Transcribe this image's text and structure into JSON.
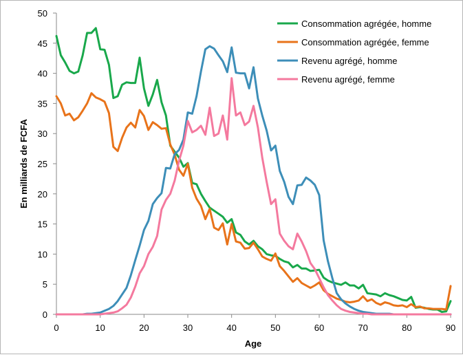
{
  "chart_data": {
    "type": "line",
    "title": "",
    "xlabel": "Age",
    "ylabel": "En milliards de FCFA",
    "xlim": [
      0,
      90
    ],
    "ylim": [
      0,
      50
    ],
    "xticks": [
      0,
      10,
      20,
      30,
      40,
      50,
      60,
      70,
      80,
      90
    ],
    "yticks": [
      0,
      5,
      10,
      15,
      20,
      25,
      30,
      35,
      40,
      45,
      50
    ],
    "grid": false,
    "legend_position": "top-right",
    "x": [
      0,
      1,
      2,
      3,
      4,
      5,
      6,
      7,
      8,
      9,
      10,
      11,
      12,
      13,
      14,
      15,
      16,
      17,
      18,
      19,
      20,
      21,
      22,
      23,
      24,
      25,
      26,
      27,
      28,
      29,
      30,
      31,
      32,
      33,
      34,
      35,
      36,
      37,
      38,
      39,
      40,
      41,
      42,
      43,
      44,
      45,
      46,
      47,
      48,
      49,
      50,
      51,
      52,
      53,
      54,
      55,
      56,
      57,
      58,
      59,
      60,
      61,
      62,
      63,
      64,
      65,
      66,
      67,
      68,
      69,
      70,
      71,
      72,
      73,
      74,
      75,
      76,
      77,
      78,
      79,
      80,
      81,
      82,
      83,
      84,
      85,
      86,
      87,
      88,
      89,
      90
    ],
    "series": [
      {
        "name": "Consommation agrégée, homme",
        "color": "#19a84b",
        "values": [
          46.2,
          43,
          41.8,
          40.4,
          40,
          40.3,
          43,
          46.7,
          46.7,
          47.5,
          44,
          43.9,
          41.4,
          35.9,
          36.2,
          38.1,
          38.5,
          38.4,
          38.4,
          42.6,
          37.5,
          34.6,
          36.5,
          38.9,
          35.2,
          33,
          28,
          27,
          26,
          24.5,
          25.1,
          21.8,
          21.6,
          20,
          18.8,
          17.7,
          17.2,
          16.7,
          16.2,
          15.2,
          15.8,
          13.6,
          13.2,
          12.1,
          11.6,
          12.2,
          11.3,
          10.8,
          10,
          9.8,
          9.7,
          9.2,
          8.8,
          8.6,
          7.8,
          8.2,
          7.6,
          7.6,
          7.2,
          7.3,
          7.4,
          6.1,
          5.6,
          5.3,
          5.1,
          4.9,
          5.3,
          4.8,
          4.8,
          4.3,
          4.9,
          3.5,
          3.4,
          3.3,
          3,
          3.5,
          3.2,
          3,
          2.7,
          2.4,
          2.3,
          2.9,
          1.1,
          1.2,
          1.1,
          0.9,
          0.8,
          0.8,
          0.4,
          0.5,
          2.2
        ]
      },
      {
        "name": "Consommation agrégée, femme",
        "color": "#e8731a",
        "values": [
          36.2,
          35,
          33,
          33.3,
          32.2,
          32.7,
          33.8,
          35,
          36.7,
          36,
          35.7,
          35.3,
          33.4,
          27.8,
          27.1,
          29.3,
          31,
          31.8,
          31,
          33.9,
          32.9,
          30.6,
          31.9,
          31.4,
          30.8,
          30.9,
          28.2,
          26.5,
          24,
          23,
          25,
          21,
          19.2,
          18,
          15.8,
          17.5,
          14.4,
          14,
          15.1,
          11.6,
          15,
          12.1,
          11.9,
          10.9,
          11,
          11.9,
          10.8,
          9.6,
          9.2,
          8.9,
          10.1,
          8,
          7.2,
          6.3,
          5.4,
          6,
          5.2,
          4.8,
          4.4,
          4.8,
          5.3,
          4,
          3.4,
          3,
          2.6,
          2.4,
          2.1,
          2,
          2.1,
          2.3,
          3,
          2.2,
          2.5,
          1.9,
          1.6,
          2,
          1.8,
          1.5,
          1.4,
          1.5,
          1.2,
          1.7,
          1.2,
          1.3,
          1,
          1,
          0.9,
          0.9,
          0.9,
          0.8,
          4.7
        ]
      },
      {
        "name": "Revenu agrégé, homme",
        "color": "#3d8eb8",
        "values": [
          0,
          0,
          0,
          0,
          0,
          0,
          0,
          0.1,
          0.1,
          0.2,
          0.3,
          0.6,
          0.9,
          1.4,
          2.2,
          3.3,
          4.4,
          6.5,
          9,
          11.4,
          14,
          15.5,
          18.3,
          19.3,
          20.1,
          24.3,
          24.2,
          26.6,
          27.3,
          29,
          33.5,
          33.3,
          36.2,
          40.3,
          44,
          44.5,
          44.1,
          43,
          42,
          40.2,
          44.3,
          40.1,
          40,
          40,
          37.5,
          41,
          35.8,
          33,
          30.5,
          27.2,
          28,
          23.8,
          22,
          19.5,
          18.3,
          21.4,
          21.5,
          22.7,
          22.2,
          21.5,
          19.8,
          12.3,
          8.8,
          6,
          3.5,
          2.5,
          1.8,
          1.3,
          0.9,
          0.6,
          0.4,
          0.3,
          0.2,
          0.1,
          0.1,
          0.1,
          0.1,
          0,
          0,
          0,
          0,
          0,
          0,
          0,
          0,
          0,
          0,
          0,
          0,
          0,
          0
        ]
      },
      {
        "name": "Revenu agrégé, femme",
        "color": "#f4799e",
        "values": [
          0,
          0,
          0,
          0,
          0,
          0,
          0,
          0,
          0,
          0,
          0,
          0.1,
          0.2,
          0.3,
          0.5,
          1,
          1.6,
          2.8,
          4.6,
          6.8,
          8,
          10,
          11.2,
          13,
          17.4,
          19,
          20,
          22.2,
          25.5,
          28,
          32.1,
          30.2,
          30.6,
          31.3,
          29.8,
          34.3,
          29.6,
          30,
          33,
          29,
          39.2,
          33,
          33.5,
          31.4,
          32,
          34.6,
          31,
          26,
          22,
          18.3,
          19.1,
          13.4,
          12.2,
          11.3,
          10.8,
          13.4,
          12.1,
          10.5,
          8.5,
          7.5,
          6,
          4.5,
          3.2,
          2.3,
          1.5,
          0.9,
          0.6,
          0.4,
          0.3,
          0.2,
          0.1,
          0.1,
          0,
          0,
          0,
          0,
          0,
          0,
          0,
          0,
          0,
          0,
          0,
          0,
          0,
          0,
          0,
          0,
          0,
          0,
          0
        ]
      }
    ]
  }
}
